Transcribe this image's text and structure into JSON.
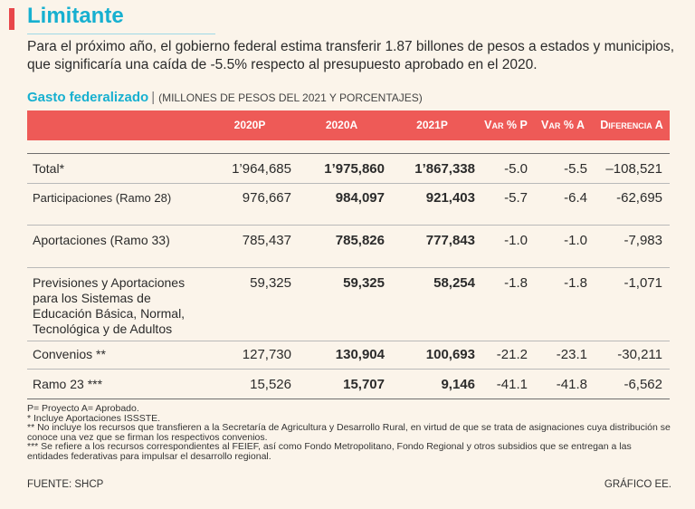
{
  "headline": "Limitante",
  "intro": "Para el próximo año, el gobierno federal estima transferir 1.87 billones de pesos a estados y municipios, que significaría una caída de -5.5% respecto al presupuesto aprobado en el 2020.",
  "colors": {
    "accent_blue": "#17b0d0",
    "header_red": "#ee5a57",
    "background": "#fbf4ea"
  },
  "chart_data": {
    "type": "table",
    "title": "Gasto federalizado",
    "subtitle": "(MILLONES DE PESOS DEL 2021 Y PORCENTAJES)",
    "columns": [
      "2020P",
      "2020A",
      "2021P",
      "Var % P",
      "Var % A",
      "Diferencia A"
    ],
    "rows": [
      {
        "label": "Total*",
        "values": [
          "1’964,685",
          "1’975,860",
          "1’867,338",
          "-5.0",
          "-5.5",
          "–108,521"
        ]
      },
      {
        "label": "Participaciones (Ramo 28)",
        "values": [
          "976,667",
          "984,097",
          "921,403",
          "-5.7",
          "-6.4",
          "-62,695"
        ]
      },
      {
        "label": "Aportaciones (Ramo 33)",
        "values": [
          "785,437",
          "785,826",
          "777,843",
          "-1.0",
          "-1.0",
          "-7,983"
        ]
      },
      {
        "label": "Previsiones y Aportaciones para los Sistemas de Educación Básica, Normal, Tecnológica y de Adultos",
        "values": [
          "59,325",
          "59,325",
          "58,254",
          "-1.8",
          "-1.8",
          "-1,071"
        ]
      },
      {
        "label": "Convenios **",
        "values": [
          "127,730",
          "130,904",
          "100,693",
          "-21.2",
          "-23.1",
          "-30,211"
        ]
      },
      {
        "label": "Ramo 23 ***",
        "values": [
          "15,526",
          "15,707",
          "9,146",
          "-41.1",
          "-41.8",
          "-6,562"
        ]
      }
    ]
  },
  "notes": [
    "P= Proyecto A= Aprobado.",
    "* Incluye Aportaciones ISSSTE.",
    "** No incluye los recursos que transfieren a la Secretaría de Agricultura y Desarrollo Rural, en virtud de que se trata de asignaciones cuya distribución se conoce una vez que se firman los respectivos convenios.",
    "*** Se refiere a los recursos correspondientes al FEIEF, así como Fondo Metropolitano, Fondo Regional y otros subsidios que se entregan a las entidades federativas para impulsar el desarrollo regional."
  ],
  "source": "FUENTE: SHCP",
  "credit": "GRÁFICO EE."
}
